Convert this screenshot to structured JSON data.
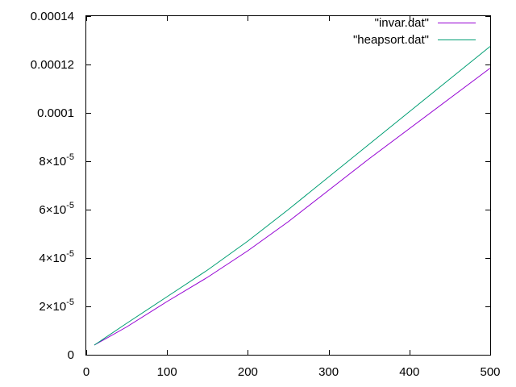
{
  "chart_data": {
    "type": "line",
    "title": "",
    "xlabel": "",
    "ylabel": "",
    "xlim": [
      0,
      500
    ],
    "ylim": [
      0,
      0.00014
    ],
    "grid": false,
    "legend_position": "top-right",
    "x_ticks": [
      {
        "value": 0,
        "label": "0"
      },
      {
        "value": 100,
        "label": "100"
      },
      {
        "value": 200,
        "label": "200"
      },
      {
        "value": 300,
        "label": "300"
      },
      {
        "value": 400,
        "label": "400"
      },
      {
        "value": 500,
        "label": "500"
      }
    ],
    "y_ticks": [
      {
        "value": 0,
        "mantissa": "0",
        "exponent": ""
      },
      {
        "value": 2e-05,
        "mantissa": "2×10",
        "exponent": "-5"
      },
      {
        "value": 4e-05,
        "mantissa": "4×10",
        "exponent": "-5"
      },
      {
        "value": 6e-05,
        "mantissa": "6×10",
        "exponent": "-5"
      },
      {
        "value": 8e-05,
        "mantissa": "8×10",
        "exponent": "-5"
      },
      {
        "value": 0.0001,
        "mantissa": "0.0001",
        "exponent": ""
      },
      {
        "value": 0.00012,
        "mantissa": "0.00012",
        "exponent": ""
      },
      {
        "value": 0.00014,
        "mantissa": "0.00014",
        "exponent": ""
      }
    ],
    "series": [
      {
        "name": "\"invar.dat\"",
        "color": "#9400d3",
        "points": [
          [
            10,
            4e-06
          ],
          [
            50,
            1.15e-05
          ],
          [
            100,
            2.2e-05
          ],
          [
            150,
            3.2e-05
          ],
          [
            200,
            4.3e-05
          ],
          [
            250,
            5.5e-05
          ],
          [
            300,
            6.8e-05
          ],
          [
            350,
            8.1e-05
          ],
          [
            400,
            9.35e-05
          ],
          [
            450,
            0.000106
          ],
          [
            500,
            0.0001185
          ]
        ]
      },
      {
        "name": "\"heapsort.dat\"",
        "color": "#009e73",
        "points": [
          [
            10,
            4e-06
          ],
          [
            50,
            1.3e-05
          ],
          [
            100,
            2.4e-05
          ],
          [
            150,
            3.5e-05
          ],
          [
            200,
            4.7e-05
          ],
          [
            250,
            6e-05
          ],
          [
            300,
            7.35e-05
          ],
          [
            350,
            8.7e-05
          ],
          [
            400,
            0.0001005
          ],
          [
            450,
            0.000114
          ],
          [
            500,
            0.0001275
          ]
        ]
      }
    ]
  }
}
